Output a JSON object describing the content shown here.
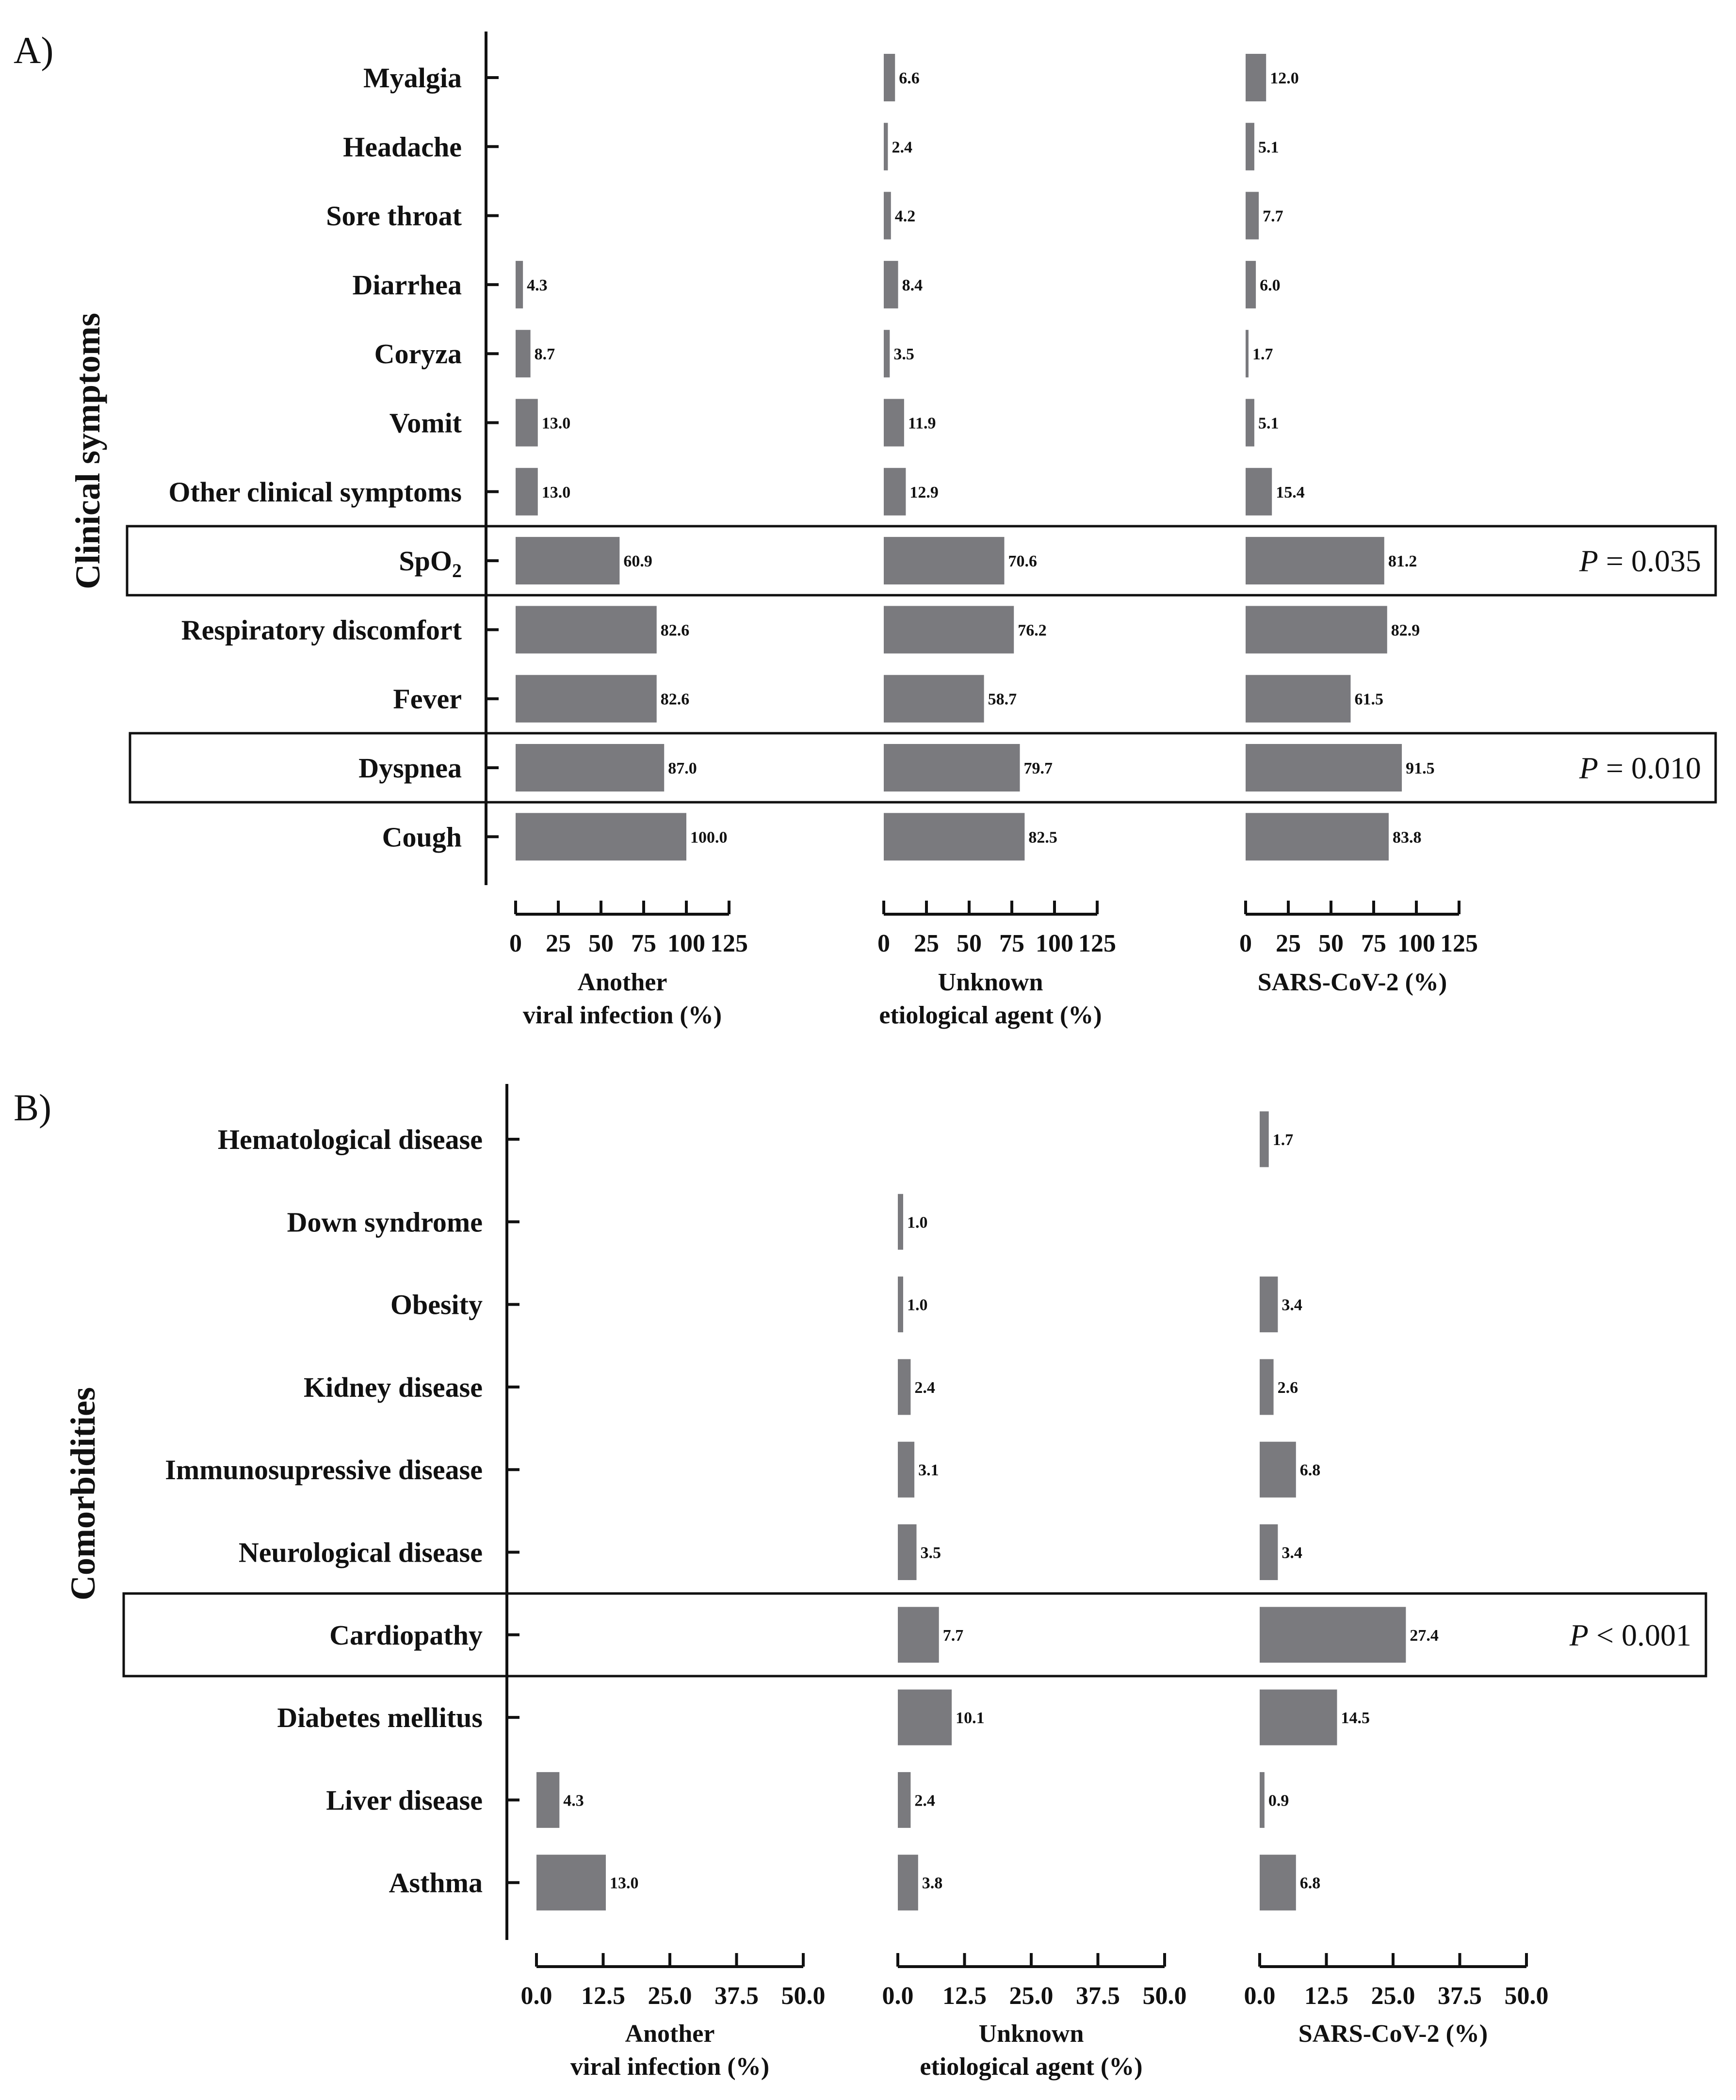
{
  "chart_data": [
    {
      "panel": "A)",
      "type": "bar",
      "orientation": "horizontal",
      "side_title": "Clinical symptoms",
      "categories": [
        "Myalgia",
        "Headache",
        "Sore throat",
        "Diarrhea",
        "Coryza",
        "Vomit",
        "Other clinical symptoms",
        "SpO2",
        "Respiratory discomfort",
        "Fever",
        "Dyspnea",
        "Cough"
      ],
      "xlim": [
        0,
        125
      ],
      "ticks": [
        "0",
        "25",
        "50",
        "75",
        "100",
        "125"
      ],
      "series": [
        {
          "name": "Another viral infection (%)",
          "axis_title": [
            "Another",
            "viral infection (%)"
          ],
          "values": [
            null,
            null,
            null,
            4.3,
            8.7,
            13.0,
            13.0,
            60.9,
            82.6,
            82.6,
            87.0,
            100.0
          ]
        },
        {
          "name": "Unknown etiological agent (%)",
          "axis_title": [
            "Unknown",
            "etiological agent (%)"
          ],
          "values": [
            6.6,
            2.4,
            4.2,
            8.4,
            3.5,
            11.9,
            12.9,
            70.6,
            76.2,
            58.7,
            79.7,
            82.5
          ]
        },
        {
          "name": "SARS-CoV-2 (%)",
          "axis_title": [
            "SARS-CoV-2 (%)"
          ],
          "values": [
            12.0,
            5.1,
            7.7,
            6.0,
            1.7,
            5.1,
            15.4,
            81.2,
            82.9,
            61.5,
            91.5,
            83.8
          ]
        }
      ],
      "annotations": [
        {
          "category": "SpO2",
          "text": "P = 0.035"
        },
        {
          "category": "Dyspnea",
          "text": "P = 0.010"
        }
      ]
    },
    {
      "panel": "B)",
      "type": "bar",
      "orientation": "horizontal",
      "side_title": "Comorbidities",
      "categories": [
        "Hematological disease",
        "Down syndrome",
        "Obesity",
        "Kidney disease",
        "Immunosupressive disease",
        "Neurological disease",
        "Cardiopathy",
        "Diabetes mellitus",
        "Liver disease",
        "Asthma"
      ],
      "xlim": [
        0,
        50
      ],
      "ticks": [
        "0.0",
        "12.5",
        "25.0",
        "37.5",
        "50.0"
      ],
      "series": [
        {
          "name": "Another viral infection (%)",
          "axis_title": [
            "Another",
            "viral infection (%)"
          ],
          "values": [
            null,
            null,
            null,
            null,
            null,
            null,
            null,
            null,
            4.3,
            13.0
          ]
        },
        {
          "name": "Unknown etiological agent (%)",
          "axis_title": [
            "Unknown",
            "etiological agent (%)"
          ],
          "values": [
            null,
            1.0,
            1.0,
            2.4,
            3.1,
            3.5,
            7.7,
            10.1,
            2.4,
            3.8
          ]
        },
        {
          "name": "SARS-CoV-2 (%)",
          "axis_title": [
            "SARS-CoV-2 (%)"
          ],
          "values": [
            1.7,
            null,
            3.4,
            2.6,
            6.8,
            3.4,
            27.4,
            14.5,
            0.9,
            6.8
          ]
        }
      ],
      "annotations": [
        {
          "category": "Cardiopathy",
          "text": "P < 0.001"
        }
      ]
    }
  ]
}
